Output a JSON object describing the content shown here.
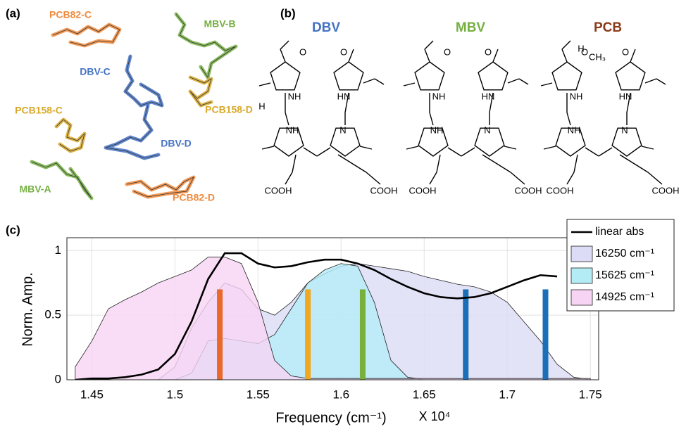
{
  "panel_a": {
    "label": "(a)",
    "molecules": [
      {
        "name": "PCB82-C",
        "color": "#ef8a3c"
      },
      {
        "name": "DBV-C",
        "color": "#4472c4"
      },
      {
        "name": "MBV-B",
        "color": "#76b043"
      },
      {
        "name": "PCB158-C",
        "color": "#d8a82a"
      },
      {
        "name": "PCB158-D",
        "color": "#d8a82a"
      },
      {
        "name": "DBV-D",
        "color": "#4472c4"
      },
      {
        "name": "MBV-A",
        "color": "#76b043"
      },
      {
        "name": "PCB82-D",
        "color": "#ef8a3c"
      }
    ]
  },
  "panel_b": {
    "label": "(b)",
    "molecules": [
      {
        "name": "DBV",
        "color": "#4472c4",
        "atoms": [
          "O",
          "NH",
          "HN",
          "O",
          "NH",
          "N",
          "COOH",
          "COOH",
          "H"
        ]
      },
      {
        "name": "MBV",
        "color": "#76b043",
        "atoms": [
          "O",
          "NH",
          "HN",
          "O",
          "NH",
          "N",
          "COOH",
          "COOH"
        ]
      },
      {
        "name": "PCB",
        "color": "#8b3a1a",
        "atoms": [
          "O",
          "NH",
          "HN",
          "O",
          "NH",
          "N",
          "COOH",
          "COOH",
          "H",
          "CH₃"
        ]
      }
    ]
  },
  "chart_data": {
    "type": "line",
    "panel_label": "(c)",
    "x_label": "Frequency (cm⁻¹)",
    "x_multiplier": "X 10⁴",
    "y_label": "Norm. Amp.",
    "xlim": [
      1.435,
      1.755
    ],
    "ylim": [
      0,
      1.1
    ],
    "xticks": [
      1.45,
      1.5,
      1.55,
      1.6,
      1.65,
      1.7,
      1.75
    ],
    "yticks": [
      0,
      0.5,
      1
    ],
    "grid": true,
    "legend": "upper right",
    "x": [
      1.44,
      1.45,
      1.46,
      1.47,
      1.48,
      1.49,
      1.5,
      1.51,
      1.52,
      1.53,
      1.54,
      1.55,
      1.56,
      1.57,
      1.58,
      1.59,
      1.6,
      1.61,
      1.62,
      1.63,
      1.64,
      1.65,
      1.66,
      1.67,
      1.68,
      1.69,
      1.7,
      1.71,
      1.72,
      1.73,
      1.74,
      1.75
    ],
    "series": [
      {
        "name": "linear abs",
        "kind": "line",
        "color": "#000000",
        "values": [
          0,
          0.01,
          0.01,
          0.02,
          0.04,
          0.08,
          0.2,
          0.45,
          0.78,
          0.98,
          0.98,
          0.9,
          0.87,
          0.88,
          0.91,
          0.93,
          0.93,
          0.9,
          0.85,
          0.78,
          0.72,
          0.67,
          0.64,
          0.63,
          0.64,
          0.67,
          0.72,
          0.77,
          0.81,
          0.8,
          null,
          null
        ]
      },
      {
        "name": "16250 cm⁻¹",
        "kind": "area",
        "color": "#dcdcf6",
        "values": [
          0,
          0,
          0,
          0,
          0,
          0,
          0.1,
          0.4,
          0.6,
          0.75,
          0.7,
          0.55,
          0.5,
          0.6,
          0.75,
          0.82,
          0.88,
          0.9,
          0.88,
          0.86,
          0.84,
          0.8,
          0.77,
          0.74,
          0.72,
          0.68,
          0.6,
          0.45,
          0.3,
          0.12,
          0.02,
          0
        ]
      },
      {
        "name": "15625 cm⁻¹",
        "kind": "area",
        "color": "#b4ecf6",
        "values": [
          0,
          0,
          0,
          0,
          0,
          0,
          0,
          0.05,
          0.3,
          0.32,
          0.3,
          0.28,
          0.35,
          0.55,
          0.75,
          0.85,
          0.9,
          0.88,
          0.6,
          0.15,
          0.02,
          0,
          0,
          0,
          0,
          0,
          0,
          0,
          0,
          0,
          0,
          0
        ]
      },
      {
        "name": "14925 cm⁻¹",
        "kind": "area",
        "color": "#f8d4f4",
        "values": [
          0.1,
          0.3,
          0.55,
          0.62,
          0.68,
          0.75,
          0.8,
          0.85,
          0.95,
          0.95,
          0.9,
          0.6,
          0.15,
          0.03,
          0.01,
          0.01,
          0.01,
          0.01,
          0.01,
          0.01,
          0.01,
          0.01,
          0.01,
          0.01,
          0.01,
          0.01,
          0.01,
          0.01,
          0.01,
          0.01,
          0.01,
          0.01
        ]
      }
    ],
    "markers": {
      "x": [
        1.527,
        1.58,
        1.613,
        1.675,
        1.723
      ],
      "values": [
        0.7,
        0.7,
        0.7,
        0.7,
        0.7
      ],
      "colors": [
        "#e8692a",
        "#f0a820",
        "#77b03a",
        "#1a6fb8",
        "#1a6fb8"
      ]
    }
  }
}
